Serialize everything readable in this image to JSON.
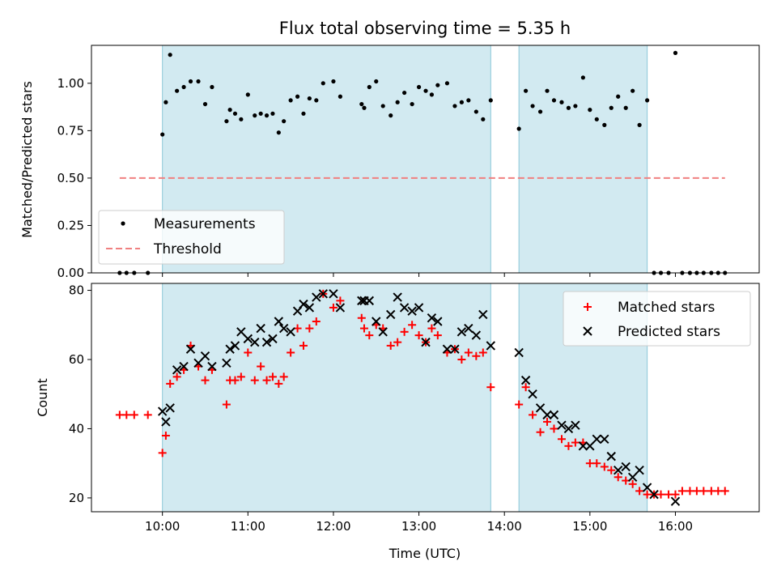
{
  "chart_data": [
    {
      "type": "scatter",
      "title": "Flux total observing time = 5.35 h",
      "xlabel": "",
      "ylabel": "Matched/Predicted stars",
      "ylim": [
        0,
        1.2
      ],
      "yticks": [
        "0.00",
        "0.25",
        "0.50",
        "0.75",
        "1.00"
      ],
      "ytick_values": [
        0,
        0.25,
        0.5,
        0.75,
        1.0
      ],
      "x_is_hours_utc": true,
      "xlim_hours": [
        9.17,
        16.98
      ],
      "shaded_intervals_hours": [
        [
          10.0,
          13.84
        ],
        [
          14.17,
          15.67
        ]
      ],
      "shade_color": "#add8e6",
      "legend_position": "lower-left",
      "series": [
        {
          "name": "Measurements",
          "marker": "dot",
          "color": "#000000",
          "x": [
            9.5,
            9.58,
            9.67,
            9.83,
            10.0,
            10.04,
            10.09,
            10.17,
            10.25,
            10.33,
            10.42,
            10.5,
            10.58,
            10.75,
            10.79,
            10.85,
            10.92,
            11.0,
            11.08,
            11.15,
            11.22,
            11.29,
            11.36,
            11.42,
            11.5,
            11.58,
            11.65,
            11.72,
            11.8,
            11.88,
            12.0,
            12.08,
            12.33,
            12.36,
            12.42,
            12.5,
            12.58,
            12.67,
            12.75,
            12.83,
            12.92,
            13.0,
            13.08,
            13.15,
            13.22,
            13.33,
            13.42,
            13.5,
            13.58,
            13.67,
            13.75,
            13.84,
            14.17,
            14.25,
            14.33,
            14.42,
            14.5,
            14.58,
            14.67,
            14.75,
            14.83,
            14.92,
            15.0,
            15.08,
            15.17,
            15.25,
            15.33,
            15.42,
            15.5,
            15.58,
            15.67,
            15.75,
            15.83,
            15.92,
            16.0,
            16.08,
            16.17,
            16.25,
            16.33,
            16.42,
            16.5,
            16.58
          ],
          "y": [
            0,
            0,
            0,
            0,
            0.73,
            0.9,
            1.15,
            0.96,
            0.98,
            1.01,
            1.01,
            0.89,
            0.98,
            0.8,
            0.86,
            0.84,
            0.81,
            0.94,
            0.83,
            0.84,
            0.83,
            0.84,
            0.74,
            0.8,
            0.91,
            0.93,
            0.84,
            0.92,
            0.91,
            1.0,
            1.01,
            0.93,
            0.89,
            0.87,
            0.98,
            1.01,
            0.88,
            0.83,
            0.9,
            0.95,
            0.89,
            0.98,
            0.96,
            0.94,
            0.99,
            1.0,
            0.88,
            0.9,
            0.91,
            0.85,
            0.81,
            0.91,
            0.76,
            0.96,
            0.88,
            0.85,
            0.96,
            0.91,
            0.9,
            0.87,
            0.88,
            1.03,
            0.86,
            0.81,
            0.78,
            0.87,
            0.93,
            0.87,
            0.96,
            0.78,
            0.91,
            0.0,
            0.0,
            0.0,
            1.16,
            0.0,
            0.0,
            0.0,
            0.0,
            0.0,
            0.0,
            0.0
          ]
        },
        {
          "name": "Threshold",
          "line_style": "dashed",
          "color": "#f08080",
          "x": [
            9.5,
            16.58
          ],
          "y": [
            0.5,
            0.5
          ]
        }
      ]
    },
    {
      "type": "scatter",
      "title": "",
      "xlabel": "Time (UTC)",
      "ylabel": "Count",
      "ylim": [
        16,
        82
      ],
      "yticks": [
        "20",
        "40",
        "60",
        "80"
      ],
      "ytick_values": [
        20,
        40,
        60,
        80
      ],
      "xticks": [
        "10:00",
        "11:00",
        "12:00",
        "13:00",
        "14:00",
        "15:00",
        "16:00"
      ],
      "xtick_values": [
        10,
        11,
        12,
        13,
        14,
        15,
        16
      ],
      "xlim_hours": [
        9.17,
        16.98
      ],
      "shaded_intervals_hours": [
        [
          10.0,
          13.84
        ],
        [
          14.17,
          15.67
        ]
      ],
      "shade_color": "#add8e6",
      "legend_position": "upper-right",
      "series": [
        {
          "name": "Matched stars",
          "marker": "plus",
          "color": "#ff0000",
          "x": [
            9.5,
            9.58,
            9.67,
            9.83,
            10.0,
            10.04,
            10.09,
            10.17,
            10.25,
            10.33,
            10.42,
            10.5,
            10.58,
            10.75,
            10.79,
            10.85,
            10.92,
            11.0,
            11.08,
            11.15,
            11.22,
            11.29,
            11.36,
            11.42,
            11.5,
            11.58,
            11.65,
            11.72,
            11.8,
            11.88,
            12.0,
            12.08,
            12.33,
            12.36,
            12.42,
            12.5,
            12.58,
            12.67,
            12.75,
            12.83,
            12.92,
            13.0,
            13.08,
            13.15,
            13.22,
            13.33,
            13.42,
            13.5,
            13.58,
            13.67,
            13.75,
            13.84,
            14.17,
            14.25,
            14.33,
            14.42,
            14.5,
            14.58,
            14.67,
            14.75,
            14.83,
            14.92,
            15.0,
            15.08,
            15.17,
            15.25,
            15.33,
            15.42,
            15.5,
            15.58,
            15.67,
            15.75,
            15.83,
            15.92,
            16.0,
            16.08,
            16.17,
            16.25,
            16.33,
            16.42,
            16.5,
            16.58
          ],
          "y": [
            44,
            44,
            44,
            44,
            33,
            38,
            53,
            55,
            57,
            64,
            58,
            54,
            57,
            47,
            54,
            54,
            55,
            62,
            54,
            58,
            54,
            55,
            53,
            55,
            62,
            69,
            64,
            69,
            71,
            79,
            75,
            77,
            72,
            69,
            67,
            70,
            69,
            64,
            65,
            68,
            70,
            67,
            65,
            69,
            67,
            62,
            63,
            60,
            62,
            61,
            62,
            52,
            47,
            52,
            44,
            39,
            42,
            40,
            37,
            35,
            36,
            36,
            30,
            30,
            29,
            28,
            26,
            25,
            24,
            22,
            21,
            21,
            21,
            21,
            21,
            22,
            22,
            22,
            22,
            22,
            22,
            22
          ]
        },
        {
          "name": "Predicted stars",
          "marker": "x",
          "color": "#000000",
          "x": [
            10.0,
            10.04,
            10.09,
            10.17,
            10.25,
            10.33,
            10.42,
            10.5,
            10.58,
            10.75,
            10.79,
            10.85,
            10.92,
            11.0,
            11.08,
            11.15,
            11.22,
            11.29,
            11.36,
            11.42,
            11.5,
            11.58,
            11.65,
            11.72,
            11.8,
            11.88,
            12.0,
            12.08,
            12.33,
            12.36,
            12.42,
            12.5,
            12.58,
            12.67,
            12.75,
            12.83,
            12.92,
            13.0,
            13.08,
            13.15,
            13.22,
            13.33,
            13.42,
            13.5,
            13.58,
            13.67,
            13.75,
            13.84,
            14.17,
            14.25,
            14.33,
            14.42,
            14.5,
            14.58,
            14.67,
            14.75,
            14.83,
            14.92,
            15.0,
            15.08,
            15.17,
            15.25,
            15.33,
            15.42,
            15.5,
            15.58,
            15.67,
            15.75,
            16.0
          ],
          "y": [
            45,
            42,
            46,
            57,
            58,
            63,
            59,
            61,
            58,
            59,
            63,
            64,
            68,
            66,
            65,
            69,
            65,
            66,
            71,
            69,
            68,
            74,
            76,
            75,
            78,
            79,
            79,
            75,
            77,
            77,
            77,
            71,
            68,
            73,
            78,
            75,
            74,
            75,
            65,
            72,
            71,
            63,
            63,
            68,
            69,
            67,
            73,
            64,
            62,
            54,
            50,
            46,
            44,
            44,
            41,
            40,
            41,
            35,
            35,
            37,
            37,
            32,
            28,
            29,
            26,
            28,
            23,
            21,
            19
          ]
        }
      ]
    }
  ]
}
